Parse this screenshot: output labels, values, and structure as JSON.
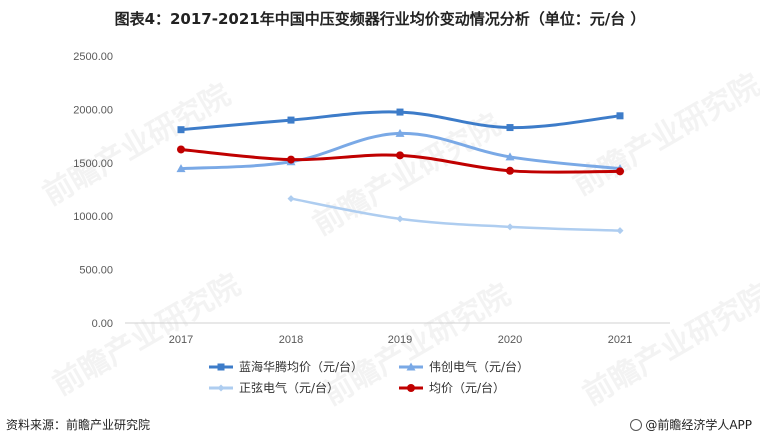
{
  "title": "图表4：2017-2021年中国中压变频器行业均价变动情况分析（单位：元/台 ）",
  "footer": {
    "source": "资料来源：前瞻产业研究院",
    "brand": "@前瞻经济学人APP"
  },
  "watermark": "前瞻产业研究院",
  "chart_data": {
    "type": "line",
    "title": "图表4：2017-2021年中国中压变频器行业均价变动情况分析（单位：元/台 ）",
    "categories": [
      "2017",
      "2018",
      "2019",
      "2020",
      "2021"
    ],
    "yticks": [
      "0.00",
      "500.00",
      "1000.00",
      "1500.00",
      "2000.00",
      "2500.00"
    ],
    "ylim": [
      0,
      2500
    ],
    "grid": false,
    "legend_position": "bottom",
    "series": [
      {
        "name": "蓝海华腾均价（元/台）",
        "values": [
          1810,
          1900,
          1975,
          1830,
          1940
        ],
        "color": "#3d7cc9",
        "marker": "square"
      },
      {
        "name": "伟创电气（元/台）",
        "values": [
          1445,
          1510,
          1775,
          1555,
          1445
        ],
        "color": "#7aa9e6",
        "marker": "triangle"
      },
      {
        "name": "正弦电气（元/台）",
        "values": [
          null,
          1165,
          975,
          900,
          865
        ],
        "color": "#aecdf0",
        "marker": "diamond"
      },
      {
        "name": "均价（元/台）",
        "values": [
          1625,
          1530,
          1570,
          1425,
          1420
        ],
        "color": "#c00000",
        "marker": "circle"
      }
    ]
  }
}
